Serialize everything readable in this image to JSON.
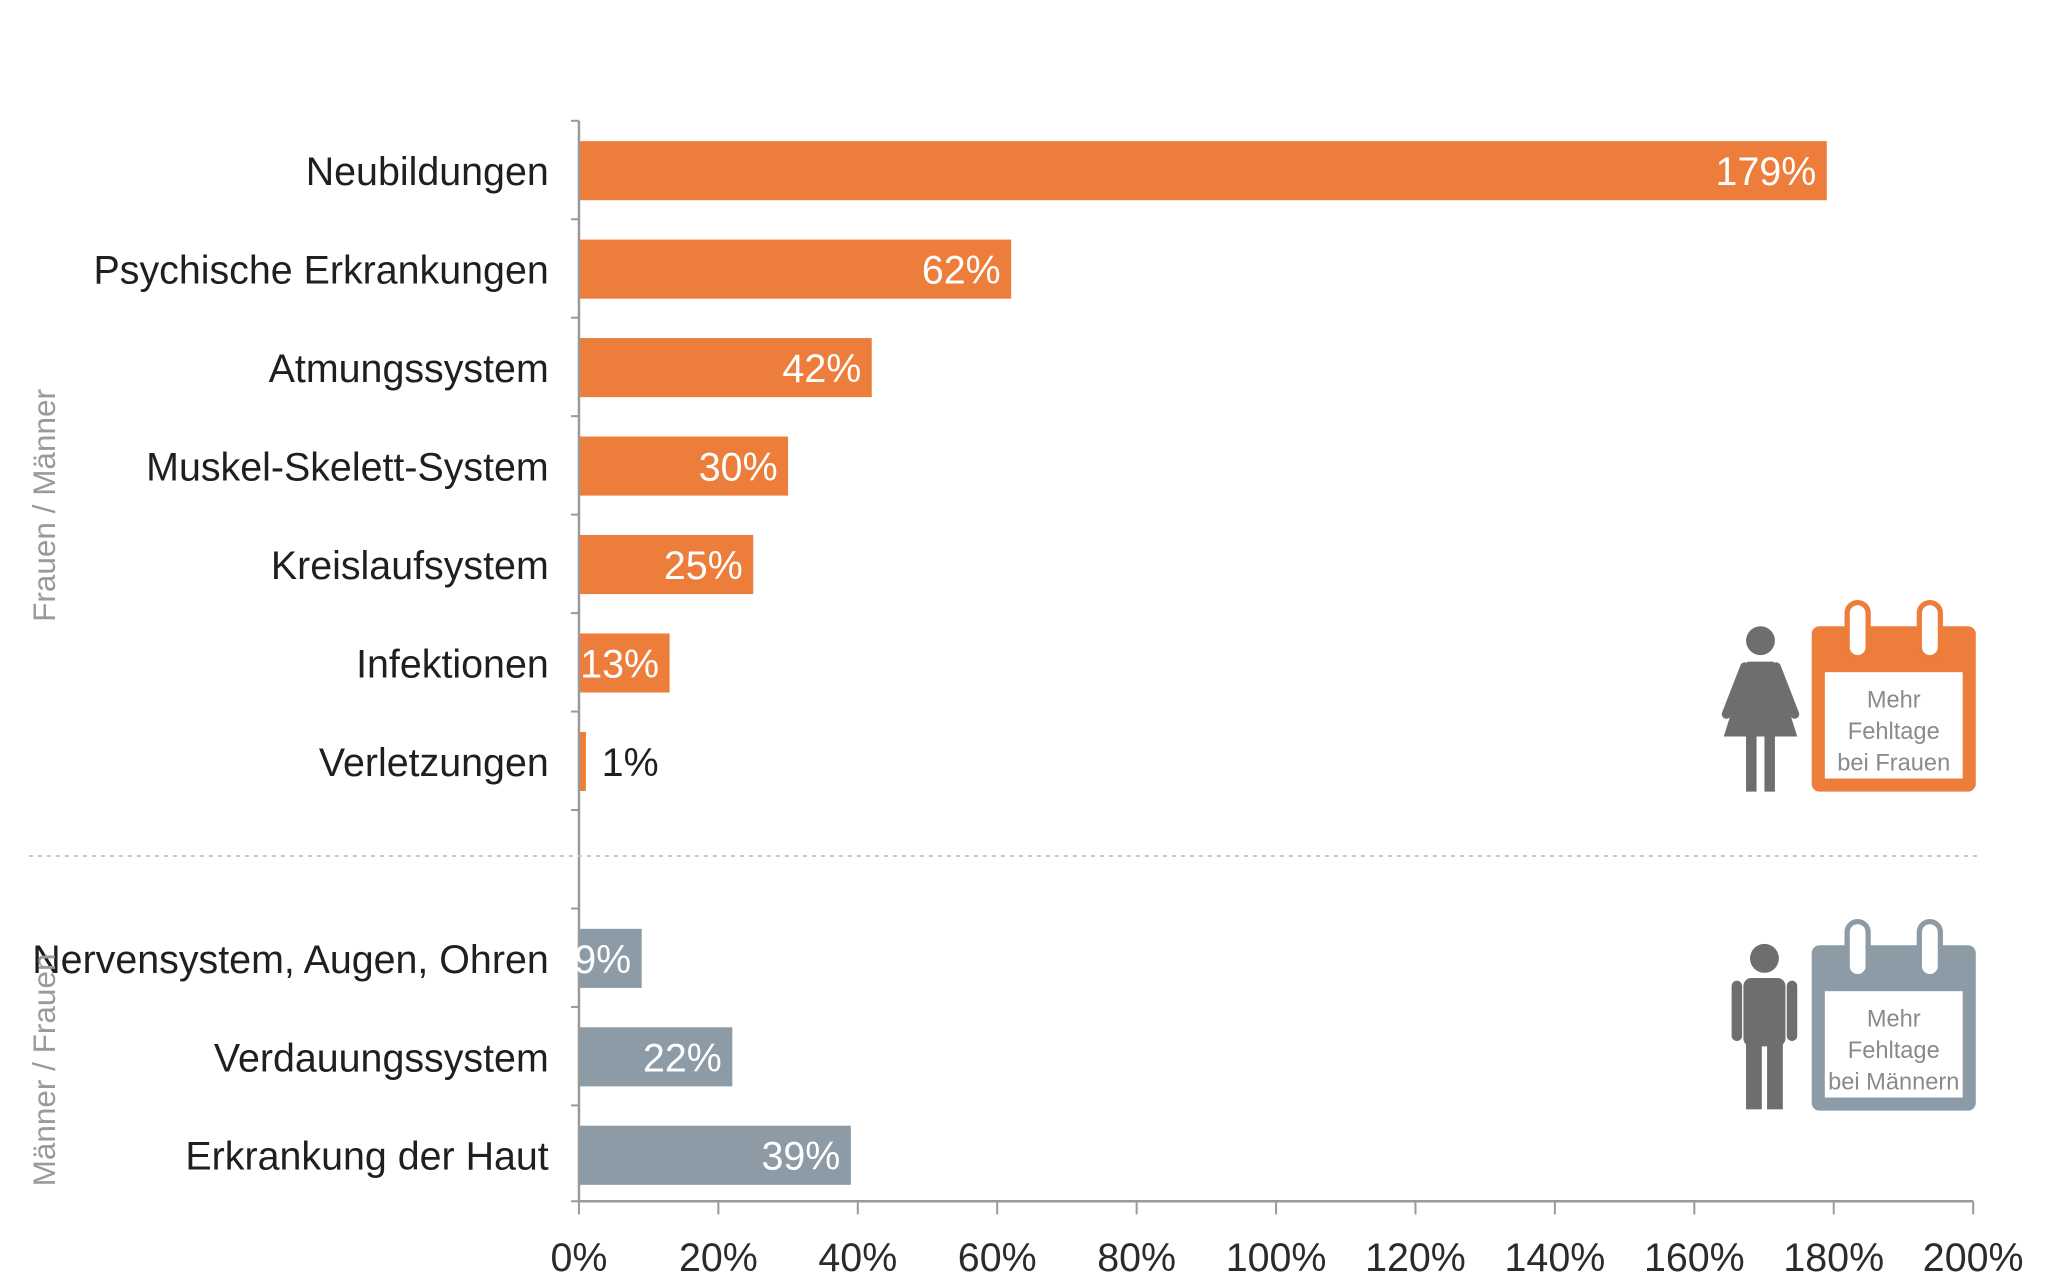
{
  "chart_data": {
    "type": "bar",
    "orientation": "horizontal",
    "categories": [
      "Neubildungen",
      "Psychische Erkrankungen",
      "Atmungssystem",
      "Muskel-Skelett-System",
      "Kreislaufsystem",
      "Infektionen",
      "Verletzungen",
      "Nervensystem, Augen, Ohren",
      "Verdauungssystem",
      "Erkrankung der Haut"
    ],
    "values": [
      179,
      62,
      42,
      30,
      25,
      13,
      1,
      9,
      22,
      39
    ],
    "value_labels": [
      "179%",
      "62%",
      "42%",
      "30%",
      "25%",
      "13%",
      "1%",
      "9%",
      "22%",
      "39%"
    ],
    "groups": [
      {
        "label": "Frauen / Männer",
        "start": 0,
        "end": 6,
        "color": "#ED7D3A"
      },
      {
        "label": "Männer / Frauen",
        "start": 7,
        "end": 9,
        "color": "#8C9BA5"
      }
    ],
    "xlim": [
      0,
      200
    ],
    "xticks": [
      0,
      20,
      40,
      60,
      80,
      100,
      120,
      140,
      160,
      180,
      200
    ],
    "xtick_labels": [
      "0%",
      "20%",
      "40%",
      "60%",
      "80%",
      "100%",
      "120%",
      "140%",
      "160%",
      "180%",
      "200%"
    ],
    "grid": false,
    "legend": [
      {
        "text": [
          "Mehr",
          "Fehltage",
          "bei Frauen"
        ],
        "icon": "woman-icon",
        "color": "#ED7D3A",
        "placement": "right"
      },
      {
        "text": [
          "Mehr",
          "Fehltage",
          "bei Männern"
        ],
        "icon": "man-icon",
        "color": "#8C9BA5",
        "placement": "right"
      }
    ]
  }
}
